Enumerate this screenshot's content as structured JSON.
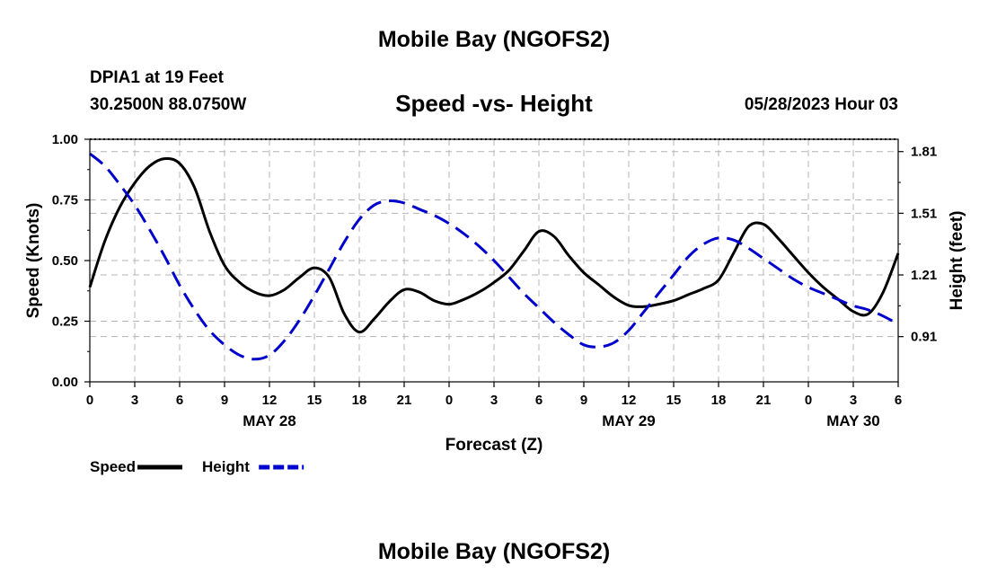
{
  "header": {
    "title": "Mobile Bay (NGOFS2)",
    "station": "DPIA1 at 19 Feet",
    "coords": "30.2500N  88.0750W",
    "datetime": "05/28/2023 Hour 03"
  },
  "footer": {
    "title": "Mobile Bay (NGOFS2)"
  },
  "chart_data": {
    "type": "line",
    "title": "Speed -vs- Height",
    "xlabel": "Forecast (Z)",
    "ylabel": "Speed (Knots)",
    "y2label": "Height (feet)",
    "x_range_hours": [
      0,
      54
    ],
    "x_ticks": [
      {
        "h": 0,
        "label": "0"
      },
      {
        "h": 3,
        "label": "3"
      },
      {
        "h": 6,
        "label": "6"
      },
      {
        "h": 9,
        "label": "9"
      },
      {
        "h": 12,
        "label": "12"
      },
      {
        "h": 15,
        "label": "15"
      },
      {
        "h": 18,
        "label": "18"
      },
      {
        "h": 21,
        "label": "21"
      },
      {
        "h": 24,
        "label": "0"
      },
      {
        "h": 27,
        "label": "3"
      },
      {
        "h": 30,
        "label": "6"
      },
      {
        "h": 33,
        "label": "9"
      },
      {
        "h": 36,
        "label": "12"
      },
      {
        "h": 39,
        "label": "15"
      },
      {
        "h": 42,
        "label": "18"
      },
      {
        "h": 45,
        "label": "21"
      },
      {
        "h": 48,
        "label": "0"
      },
      {
        "h": 51,
        "label": "3"
      },
      {
        "h": 54,
        "label": "6"
      }
    ],
    "date_labels": [
      {
        "h": 12,
        "label": "MAY 28"
      },
      {
        "h": 36,
        "label": "MAY 29"
      },
      {
        "h": 51,
        "label": "MAY 30"
      }
    ],
    "ylim": [
      0,
      1.0
    ],
    "y_ticks": [
      {
        "v": 0,
        "label": "0.00"
      },
      {
        "v": 0.25,
        "label": "0.25"
      },
      {
        "v": 0.5,
        "label": "0.50"
      },
      {
        "v": 0.75,
        "label": "0.75"
      },
      {
        "v": 1.0,
        "label": "1.00"
      }
    ],
    "y2lim": [
      0.69,
      1.87
    ],
    "y2_ticks": [
      {
        "v": 0.91,
        "label": "0.91"
      },
      {
        "v": 1.21,
        "label": "1.21"
      },
      {
        "v": 1.51,
        "label": "1.51"
      },
      {
        "v": 1.81,
        "label": "1.81"
      }
    ],
    "grid": true,
    "legend_placement": "bottom-left",
    "series": [
      {
        "name": "Speed",
        "axis": "left",
        "color": "#000000",
        "dash": "solid",
        "x": [
          0,
          1,
          2,
          3,
          4,
          5,
          6,
          7,
          8,
          9,
          10,
          11,
          12,
          13,
          14,
          15,
          16,
          17,
          18,
          19,
          20,
          21,
          22,
          23,
          24,
          25,
          26,
          27,
          28,
          29,
          30,
          31,
          32,
          33,
          34,
          35,
          36,
          37,
          38,
          39,
          40,
          41,
          42,
          43,
          44,
          45,
          46,
          47,
          48,
          49,
          50,
          51,
          52,
          53,
          54
        ],
        "values": [
          0.39,
          0.58,
          0.72,
          0.82,
          0.89,
          0.92,
          0.9,
          0.8,
          0.62,
          0.48,
          0.41,
          0.37,
          0.355,
          0.38,
          0.43,
          0.47,
          0.43,
          0.28,
          0.205,
          0.26,
          0.33,
          0.38,
          0.37,
          0.335,
          0.32,
          0.34,
          0.37,
          0.41,
          0.46,
          0.54,
          0.62,
          0.6,
          0.52,
          0.45,
          0.4,
          0.35,
          0.315,
          0.31,
          0.32,
          0.335,
          0.36,
          0.385,
          0.42,
          0.53,
          0.64,
          0.65,
          0.59,
          0.52,
          0.45,
          0.39,
          0.34,
          0.29,
          0.28,
          0.37,
          0.53
        ]
      },
      {
        "name": "Height",
        "axis": "right",
        "color": "#0000cc",
        "dash": "dashed",
        "x": [
          0,
          1,
          2,
          3,
          4,
          5,
          6,
          7,
          8,
          9,
          10,
          11,
          12,
          13,
          14,
          15,
          16,
          17,
          18,
          19,
          20,
          21,
          22,
          23,
          24,
          25,
          26,
          27,
          28,
          29,
          30,
          31,
          32,
          33,
          34,
          35,
          36,
          37,
          38,
          39,
          40,
          41,
          42,
          43,
          44,
          45,
          46,
          47,
          48,
          49,
          50,
          51,
          52,
          53,
          54
        ],
        "values": [
          1.8,
          1.74,
          1.65,
          1.55,
          1.43,
          1.3,
          1.16,
          1.04,
          0.94,
          0.87,
          0.82,
          0.8,
          0.82,
          0.89,
          0.99,
          1.11,
          1.24,
          1.37,
          1.48,
          1.55,
          1.57,
          1.56,
          1.53,
          1.5,
          1.46,
          1.41,
          1.35,
          1.28,
          1.2,
          1.12,
          1.05,
          0.98,
          0.92,
          0.87,
          0.86,
          0.88,
          0.94,
          1.03,
          1.12,
          1.21,
          1.3,
          1.36,
          1.39,
          1.38,
          1.34,
          1.29,
          1.24,
          1.19,
          1.15,
          1.12,
          1.09,
          1.06,
          1.04,
          1.01,
          0.97
        ]
      }
    ]
  }
}
